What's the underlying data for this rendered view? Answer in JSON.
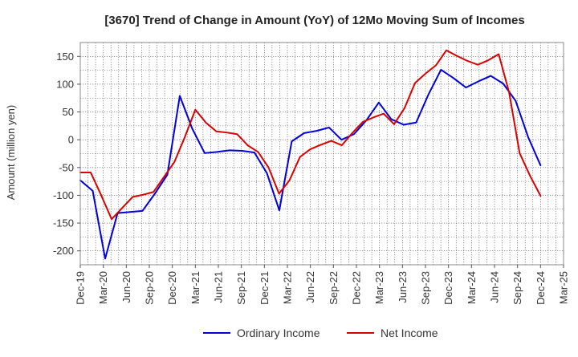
{
  "chart_data": {
    "type": "line",
    "title": "[3670]  Trend of Change in Amount (YoY) of 12Mo Moving Sum of Incomes",
    "xlabel": "",
    "ylabel": "Amount (million yen)",
    "ylim": [
      -225,
      175
    ],
    "yticks": [
      150,
      100,
      50,
      0,
      -50,
      -100,
      -150,
      -200
    ],
    "x_tick_labels": [
      "Dec-19",
      "Mar-20",
      "Jun-20",
      "Sep-20",
      "Dec-20",
      "Mar-21",
      "Jun-21",
      "Sep-21",
      "Dec-21",
      "Mar-22",
      "Jun-22",
      "Sep-22",
      "Dec-22",
      "Mar-23",
      "Jun-23",
      "Sep-23",
      "Dec-23",
      "Mar-24",
      "Jun-24",
      "Sep-24",
      "Dec-24",
      "Mar-25"
    ],
    "grid": true,
    "legend_position": "bottom",
    "series": [
      {
        "name": "Ordinary Income",
        "color": "#0000dd",
        "values": [
          -73,
          -92,
          -214,
          -132,
          -130,
          -128,
          -97,
          -63,
          79,
          20,
          -24,
          -22,
          -19,
          -20,
          -23,
          -60,
          -127,
          -3,
          12,
          16,
          22,
          0,
          10,
          35,
          67,
          37,
          27,
          31,
          82,
          126,
          111,
          94,
          105,
          115,
          101,
          70,
          5,
          -46
        ]
      },
      {
        "name": "Net Income",
        "color": "#dd0000",
        "values": [
          -59,
          -59,
          -100,
          -143,
          -123,
          -103,
          -99,
          -94,
          -67,
          -40,
          5,
          54,
          31,
          15,
          13,
          10,
          -10,
          -22,
          -50,
          -97,
          -73,
          -31,
          -17,
          -9,
          -2,
          -10,
          12,
          32,
          40,
          47,
          28,
          57,
          102,
          119,
          134,
          161,
          151,
          142,
          135,
          143,
          154,
          85,
          -24,
          -65,
          -101
        ]
      }
    ]
  }
}
